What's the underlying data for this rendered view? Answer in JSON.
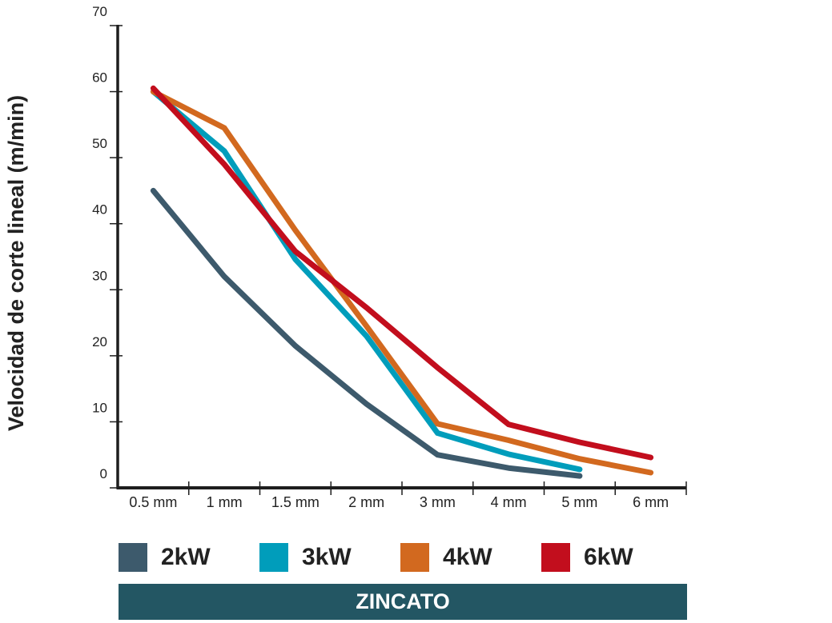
{
  "chart_data": {
    "type": "line",
    "title": "ZINCATO",
    "xlabel": "",
    "ylabel": "Velocidad de corte lineal (m/min)",
    "categories": [
      "0.5 mm",
      "1 mm",
      "1.5 mm",
      "2 mm",
      "3 mm",
      "4 mm",
      "5 mm",
      "6 mm"
    ],
    "ylim": [
      0,
      70
    ],
    "yticks": [
      0,
      10,
      20,
      30,
      40,
      50,
      60,
      70
    ],
    "ytick_labels": [
      "0",
      "10",
      "20",
      "30",
      "40",
      "50",
      "60",
      "70"
    ],
    "grid": false,
    "legend_position": "bottom",
    "series": [
      {
        "name": "2kW",
        "color": "#3d5a6c",
        "values": [
          45,
          32,
          21.5,
          12.7,
          5,
          3,
          1.8,
          null
        ]
      },
      {
        "name": "3kW",
        "color": "#009dbb",
        "values": [
          60,
          51,
          34.6,
          23,
          8.3,
          5.1,
          2.8,
          null
        ]
      },
      {
        "name": "4kW",
        "color": "#d2691f",
        "values": [
          60,
          54.5,
          39,
          24.5,
          9.7,
          7.2,
          4.4,
          2.3
        ]
      },
      {
        "name": "6kW",
        "color": "#c20e1d",
        "values": [
          60.5,
          49,
          35.8,
          27.3,
          18.2,
          9.6,
          6.9,
          4.6
        ]
      }
    ]
  }
}
